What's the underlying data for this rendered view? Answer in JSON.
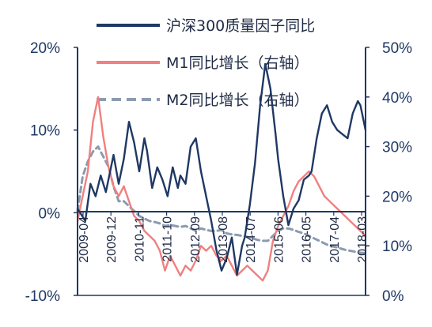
{
  "chart_data": {
    "type": "line",
    "title": "",
    "legend_position": "top",
    "grid": false,
    "y_left": {
      "ticks": [
        "20%",
        "10%",
        "0%",
        "-10%"
      ],
      "range": [
        -10,
        20
      ]
    },
    "y_right": {
      "ticks": [
        "50%",
        "40%",
        "30%",
        "20%",
        "10%",
        "0%"
      ],
      "range": [
        0,
        50
      ]
    },
    "x_tick_labels": [
      "2009-04",
      "2009-12",
      "2010-11",
      "2011-10",
      "2012-09",
      "2013-08",
      "2014-07",
      "2015-06",
      "2016-05",
      "2017-04",
      "2018-03"
    ],
    "x_range_months": [
      0,
      112
    ],
    "series": [
      {
        "name": "沪深300质量因子同比",
        "axis": "left",
        "color": "#1f3864",
        "style": "solid",
        "x": [
          0,
          3,
          5,
          7,
          9,
          11,
          13,
          14,
          16,
          18,
          20,
          22,
          24,
          26,
          27,
          29,
          31,
          33,
          35,
          37,
          39,
          40,
          42,
          44,
          46,
          48,
          50,
          52,
          54,
          56,
          58,
          60,
          62,
          64,
          65,
          67,
          69,
          71,
          73,
          75,
          77,
          78,
          80,
          82,
          84,
          86,
          88,
          90,
          91,
          93,
          95,
          97,
          99,
          101,
          103,
          105,
          107,
          109,
          110,
          112
        ],
        "values": [
          0.5,
          -1.0,
          3.5,
          2.0,
          4.5,
          2.5,
          5.5,
          7.0,
          3.5,
          6.5,
          11.0,
          8.5,
          5.0,
          9.0,
          7.5,
          3.0,
          5.5,
          4.0,
          2.0,
          5.5,
          3.0,
          4.5,
          3.5,
          8.0,
          9.0,
          5.0,
          2.0,
          -1.0,
          -4.5,
          -7.0,
          -5.5,
          -3.0,
          -7.5,
          -4.0,
          -3.0,
          1.0,
          6.0,
          13.0,
          18.0,
          15.0,
          9.5,
          6.5,
          2.0,
          -1.5,
          0.5,
          1.5,
          4.0,
          4.5,
          5.0,
          9.0,
          12.0,
          13.0,
          11.0,
          10.0,
          9.5,
          9.0,
          12.0,
          13.5,
          13.0,
          10.0
        ]
      },
      {
        "name": "M1同比增长（右轴）",
        "axis": "right",
        "color": "#f08080",
        "style": "solid",
        "x": [
          0,
          2,
          4,
          6,
          8,
          10,
          12,
          14,
          16,
          18,
          20,
          22,
          24,
          26,
          28,
          30,
          32,
          34,
          36,
          38,
          40,
          42,
          44,
          46,
          48,
          50,
          52,
          54,
          56,
          58,
          60,
          62,
          64,
          66,
          68,
          70,
          72,
          74,
          76,
          78,
          80,
          82,
          84,
          86,
          88,
          90,
          92,
          94,
          96,
          98,
          100,
          102,
          104,
          106,
          108,
          110,
          112
        ],
        "values": [
          15,
          20,
          25,
          35,
          40,
          32,
          26,
          22,
          20,
          22,
          19,
          16,
          15,
          13,
          12,
          11,
          9,
          5,
          8,
          6,
          4,
          6,
          5,
          7,
          10,
          9,
          10,
          8,
          7,
          8,
          6,
          4,
          5,
          6,
          5,
          4,
          3,
          5,
          11,
          14,
          16,
          18,
          21,
          23,
          24,
          25,
          24,
          22,
          20,
          19,
          18,
          17,
          16,
          15,
          14,
          13,
          12
        ]
      },
      {
        "name": "M2同比增长（右轴）",
        "axis": "right",
        "color": "#8c9bb0",
        "style": "dashed",
        "x": [
          0,
          2,
          4,
          6,
          8,
          10,
          12,
          14,
          16,
          18,
          20,
          22,
          24,
          26,
          28,
          30,
          32,
          34,
          36,
          38,
          40,
          42,
          44,
          46,
          48,
          50,
          52,
          54,
          56,
          58,
          60,
          62,
          64,
          66,
          68,
          70,
          72,
          74,
          76,
          78,
          80,
          82,
          84,
          86,
          88,
          90,
          92,
          94,
          96,
          98,
          100,
          102,
          104,
          106,
          108,
          110,
          112
        ],
        "values": [
          17,
          24,
          27,
          29,
          30,
          28,
          26,
          22,
          19,
          19,
          18,
          17,
          16,
          15.5,
          15,
          14.8,
          14.5,
          14,
          14.2,
          14,
          13.8,
          14,
          13.5,
          13,
          13.5,
          13.2,
          13,
          13,
          13.2,
          12.5,
          12.3,
          12.2,
          12,
          11.8,
          11.5,
          11.2,
          11,
          11,
          12,
          13,
          13.5,
          13.5,
          13.2,
          12.8,
          12.5,
          12,
          11.5,
          11,
          10.5,
          10,
          9.8,
          9.5,
          9.2,
          9.0,
          8.8,
          8.6,
          8.5
        ]
      }
    ]
  }
}
